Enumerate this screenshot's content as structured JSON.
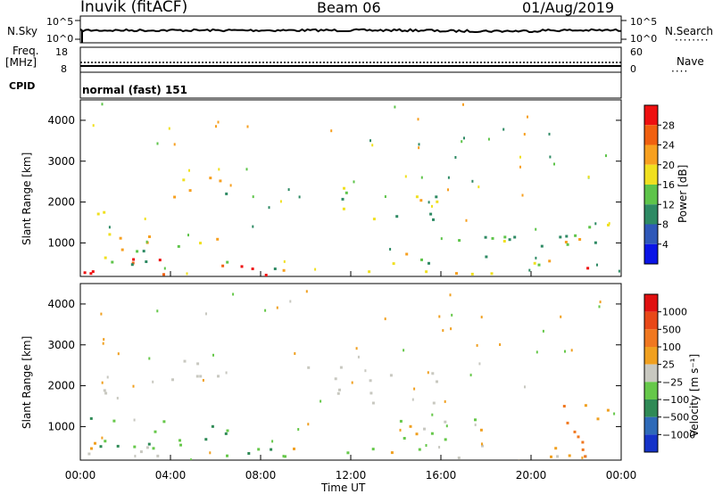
{
  "header": {
    "station": "Inuvik  (fitACF)",
    "beam": "Beam 06",
    "date": "01/Aug/2019"
  },
  "labels": {
    "nsky": "N.Sky",
    "nsearch": "N.Search",
    "freq": "Freq.",
    "freq_unit": "[MHz]",
    "nave": "Nave",
    "cpid": "CPID",
    "cpid_value": "normal (fast) 151"
  },
  "colors": {
    "background": "#ffffff",
    "line": "#000000"
  },
  "chart_data": [
    {
      "type": "line",
      "title": "N.Sky",
      "ylabel": "N.Sky",
      "y_left_ticks": [
        "10^5",
        "10^0"
      ],
      "y_right_ticks": [
        "10^5",
        "10^0"
      ],
      "right_label": "N.Search",
      "series": [
        {
          "name": "N.Sky",
          "style": "solid",
          "values_note": "noise level near 10^4 across the day"
        },
        {
          "name": "N.Search",
          "style": "dotted"
        }
      ]
    },
    {
      "type": "line",
      "title": "Freq.",
      "y_left_ticks": [
        "18",
        "8"
      ],
      "y_right_ticks": [
        "60",
        "0"
      ],
      "right_label": "Nave",
      "series": [
        {
          "name": "Freq.",
          "style": "solid",
          "values": [
            11,
            11
          ]
        },
        {
          "name": "Nave",
          "style": "dotted",
          "values": [
            24,
            24
          ]
        }
      ]
    },
    {
      "type": "heatmap",
      "ylabel": "Slant Range [km]",
      "yticks": [
        "1000",
        "2000",
        "3000",
        "4000"
      ],
      "ylim": [
        180,
        4500
      ],
      "colorbar_label": "Power [dB]",
      "colorbar_ticks": [
        "4",
        "8",
        "12",
        "16",
        "20",
        "24",
        "28"
      ],
      "colorbar_colors": [
        "#0a14e6",
        "#2f58b8",
        "#2e8a64",
        "#5ec44a",
        "#f0e020",
        "#f7a020",
        "#f06010",
        "#ee1010"
      ]
    },
    {
      "type": "heatmap",
      "ylabel": "Slant Range [km]",
      "yticks": [
        "1000",
        "2000",
        "3000",
        "4000"
      ],
      "ylim": [
        180,
        4500
      ],
      "colorbar_label": "Velocity  [m s⁻¹]",
      "colorbar_ticks": [
        "1000",
        "500",
        "100",
        "25",
        "−25",
        "−100",
        "−500",
        "−1000"
      ],
      "colorbar_colors": [
        "#1533c8",
        "#2e6ab8",
        "#2f8a56",
        "#66c84a",
        "#c8c8c0",
        "#f0a020",
        "#f07820",
        "#e84818",
        "#e01010"
      ]
    }
  ],
  "time_axis": {
    "xlabel": "Time UT",
    "ticks": [
      "00:00",
      "04:00",
      "08:00",
      "12:00",
      "16:00",
      "20:00",
      "00:00"
    ]
  }
}
